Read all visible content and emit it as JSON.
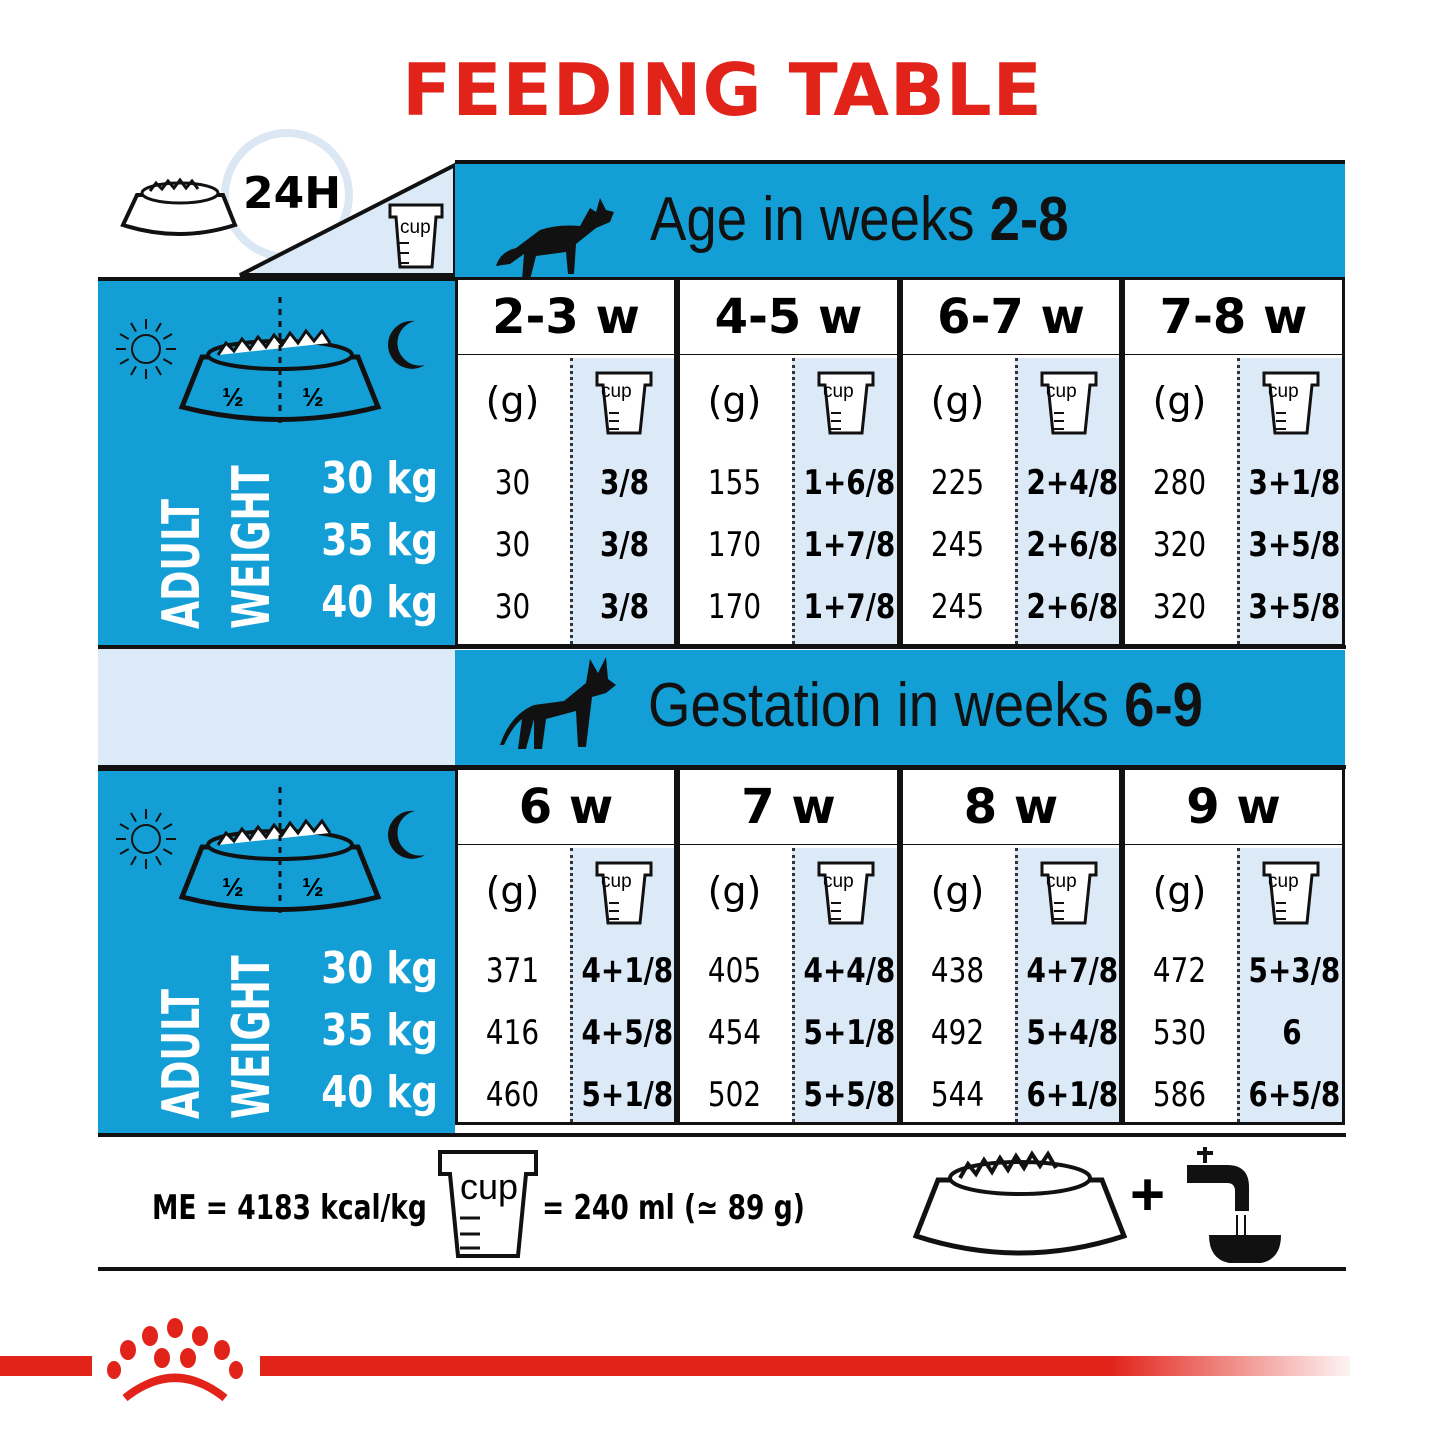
{
  "title": "FEEDING TABLE",
  "header": {
    "period": "24H",
    "cup_label": "cup"
  },
  "colors": {
    "title_red": "#e2231a",
    "band_blue": "#139fd6",
    "light_blue": "#dce9f6"
  },
  "bowl": {
    "half_left": "½",
    "half_right": "½"
  },
  "sections": [
    {
      "band_text": "Age in weeks ",
      "band_bold": "2-8",
      "left_label_1": "ADULT",
      "left_label_2": "WEIGHT",
      "weights": [
        "30 kg",
        "35 kg",
        "40 kg"
      ],
      "columns": [
        {
          "week": "2-3 w",
          "g_label": "(g)",
          "cup_label": "cup",
          "grams": [
            "30",
            "30",
            "30"
          ],
          "cups": [
            "3/8",
            "3/8",
            "3/8"
          ]
        },
        {
          "week": "4-5 w",
          "g_label": "(g)",
          "cup_label": "cup",
          "grams": [
            "155",
            "170",
            "170"
          ],
          "cups": [
            "1+6/8",
            "1+7/8",
            "1+7/8"
          ]
        },
        {
          "week": "6-7 w",
          "g_label": "(g)",
          "cup_label": "cup",
          "grams": [
            "225",
            "245",
            "245"
          ],
          "cups": [
            "2+4/8",
            "2+6/8",
            "2+6/8"
          ]
        },
        {
          "week": "7-8 w",
          "g_label": "(g)",
          "cup_label": "cup",
          "grams": [
            "280",
            "320",
            "320"
          ],
          "cups": [
            "3+1/8",
            "3+5/8",
            "3+5/8"
          ]
        }
      ]
    },
    {
      "band_text": "Gestation in weeks ",
      "band_bold": "6-9",
      "left_label_1": "ADULT",
      "left_label_2": "WEIGHT",
      "weights": [
        "30 kg",
        "35 kg",
        "40 kg"
      ],
      "columns": [
        {
          "week": "6 w",
          "g_label": "(g)",
          "cup_label": "cup",
          "grams": [
            "371",
            "416",
            "460"
          ],
          "cups": [
            "4+1/8",
            "4+5/8",
            "5+1/8"
          ]
        },
        {
          "week": "7 w",
          "g_label": "(g)",
          "cup_label": "cup",
          "grams": [
            "405",
            "454",
            "502"
          ],
          "cups": [
            "4+4/8",
            "5+1/8",
            "5+5/8"
          ]
        },
        {
          "week": "8 w",
          "g_label": "(g)",
          "cup_label": "cup",
          "grams": [
            "438",
            "492",
            "544"
          ],
          "cups": [
            "4+7/8",
            "5+4/8",
            "6+1/8"
          ]
        },
        {
          "week": "9 w",
          "g_label": "(g)",
          "cup_label": "cup",
          "grams": [
            "472",
            "530",
            "586"
          ],
          "cups": [
            "5+3/8",
            "6",
            "6+5/8"
          ]
        }
      ]
    }
  ],
  "footer": {
    "energy": "ME = 4183 kcal/kg",
    "cup_label": "cup",
    "cup_equiv": "= 240 ml (≃ 89 g)",
    "plus": "+"
  }
}
